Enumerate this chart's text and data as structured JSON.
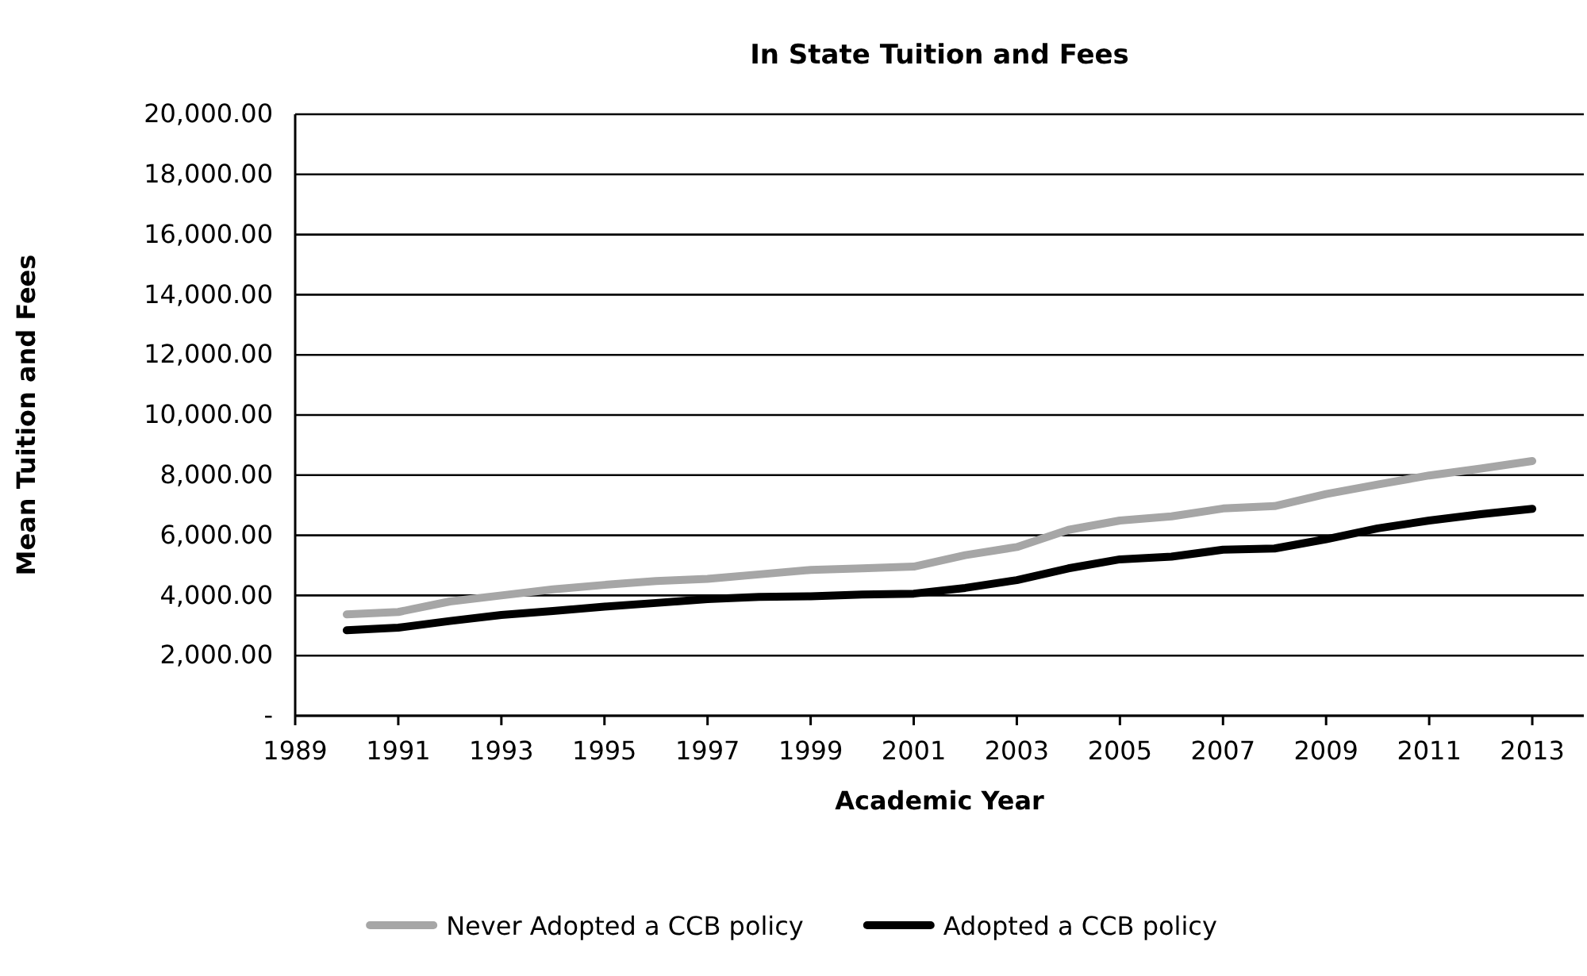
{
  "chart_data": {
    "type": "line",
    "title": "In State Tuition and Fees",
    "xlabel": "Academic Year",
    "ylabel": "Mean Tuition and Fees",
    "x": [
      1990,
      1991,
      1992,
      1993,
      1994,
      1995,
      1996,
      1997,
      1998,
      1999,
      2000,
      2001,
      2002,
      2003,
      2004,
      2005,
      2006,
      2007,
      2008,
      2009,
      2010,
      2011,
      2012,
      2013
    ],
    "series": [
      {
        "name": "Never Adopted a CCB policy",
        "color": "#a6a6a6",
        "values": [
          3370,
          3450,
          3800,
          4000,
          4200,
          4350,
          4480,
          4550,
          4700,
          4850,
          4900,
          4960,
          5340,
          5610,
          6180,
          6490,
          6630,
          6890,
          6970,
          7370,
          7690,
          7990,
          8220,
          8470
        ]
      },
      {
        "name": "Adopted a CCB policy",
        "color": "#000000",
        "values": [
          2840,
          2930,
          3150,
          3350,
          3480,
          3630,
          3750,
          3880,
          3950,
          3970,
          4030,
          4060,
          4250,
          4510,
          4900,
          5200,
          5290,
          5520,
          5560,
          5870,
          6230,
          6490,
          6700,
          6880
        ]
      }
    ],
    "xlim": [
      1989,
      2014
    ],
    "xticks": [
      1989,
      1991,
      1993,
      1995,
      1997,
      1999,
      2001,
      2003,
      2005,
      2007,
      2009,
      2011,
      2013
    ],
    "ylim": [
      0,
      20000
    ],
    "yticks": [
      {
        "value": 0,
        "label": "-"
      },
      {
        "value": 2000,
        "label": "2,000.00"
      },
      {
        "value": 4000,
        "label": "4,000.00"
      },
      {
        "value": 6000,
        "label": "6,000.00"
      },
      {
        "value": 8000,
        "label": "8,000.00"
      },
      {
        "value": 10000,
        "label": "10,000.00"
      },
      {
        "value": 12000,
        "label": "12,000.00"
      },
      {
        "value": 14000,
        "label": "14,000.00"
      },
      {
        "value": 16000,
        "label": "16,000.00"
      },
      {
        "value": 18000,
        "label": "18,000.00"
      },
      {
        "value": 20000,
        "label": "20,000.00"
      }
    ],
    "grid": "y",
    "legend": "bottom",
    "marker": "none",
    "line_style": "solid"
  }
}
